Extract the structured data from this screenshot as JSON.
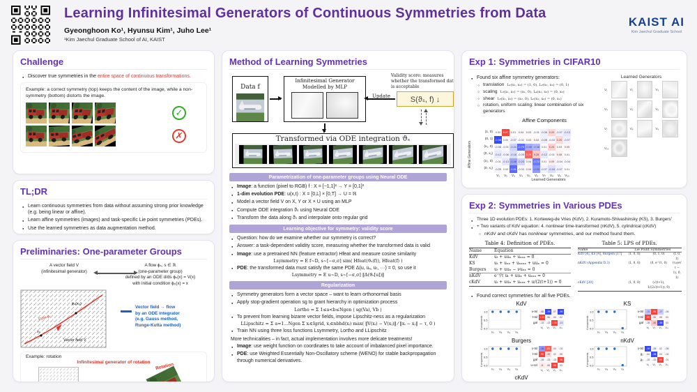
{
  "header": {
    "title": "Learning Infinitesimal Generators of Continuous Symmetries from Data",
    "authors": "Gyeonghoon Ko¹,   Hyunsu Kim¹,   Juho Lee¹",
    "affiliation": "¹Kim Jaechul Graduate School of AI, KAIST",
    "logo": {
      "main": "KAIST AI",
      "sub": "Kim Jaechul Graduate School"
    }
  },
  "challenge": {
    "heading": "Challenge",
    "bullet_prefix": "Discover true symmetries in the ",
    "bullet_highlight": "entire space of continuous transformations.",
    "example_text": "Example: a correct symmetry (top) keeps the content of the image, while a non-symmetry (bottom) distorts the image.",
    "check_icon": "✓",
    "cross_icon": "✗"
  },
  "tldr": {
    "heading": "TL;DR",
    "bullets": [
      "Learn continuous symmetries from data without assuming strong prior knowledge (e.g. being linear or affine).",
      "Learn affine symmetries (images) and task-specific Lie point symmetries (PDEs).",
      "Use the learned symmetries as data augmentation method."
    ]
  },
  "prelim": {
    "heading": "Preliminaries: One-parameter Groups",
    "left_caption_1": "A vector field V",
    "left_caption_2": "(infinitesimal generator)",
    "right_caption_1": "A flow ϕₛ, s ∈ ℝ",
    "right_caption_2": "(one-parameter group)",
    "right_caption_3": "defined by an ODE  d/ds ϕₛ(x) = V(x)",
    "right_caption_4": "with initial condition ϕ₀(x) = x",
    "flow_label": "Flow ϕₛ",
    "x0_label": "x₀",
    "phix0_label": "ϕₛ(x₀)",
    "field_label": "Vector field V",
    "ode_note_lines": [
      "Vector field → flow",
      "by an ODE integrator",
      "(e.g. Gauss method,",
      "Runge-Kutta method)"
    ],
    "example_label": "Example: rotation",
    "gen_label": "Infinitesimal generator of rotation",
    "rotation_label": "Rotation"
  },
  "method": {
    "heading": "Method of Learning Symmetries",
    "diagram": {
      "data_label": "Data f",
      "generator_label1": "Infinitesimal Generator",
      "generator_label2": "Modelled by MLP",
      "update_label": "Update",
      "validity_note": "Validity score: measures whether the transformed data is acceptable",
      "score_label": "S(ϑₛ, f) ↓",
      "transformed_label": "Transformed via ODE integration  ϑₛ"
    },
    "banner1": "Parametrization of one-parameter groups using Neural ODE",
    "param_bullets": [
      {
        "lead": "Image",
        "rest": ": a function (pixel to RGB)   f : X = [−1,1]² → Y = [0,1]³"
      },
      {
        "lead": "1-dim evolution PDE",
        "rest": ":  u(x,t) : X = [0,L] × [0,T] → U = ℝ"
      },
      {
        "lead": "",
        "rest": "Model a vector field V on X, Y or X × U using an MLP"
      },
      {
        "lead": "",
        "rest": "Compute ODE integration ϑₛ using Neural ODE"
      },
      {
        "lead": "",
        "rest": "Transform the data along ϑₛ and interpolate onto regular grid"
      }
    ],
    "banner2": "Learning objective for symmetry: validity score",
    "obj_bullets": [
      {
        "lead": "",
        "rest": "Question: how do we examine whether our symmetry is correct?"
      },
      {
        "lead": "",
        "rest": "Answer: a task-dependent validity score, measuring whether the transformed data is valid"
      },
      {
        "lead": "Image",
        "rest": ": use a pretrained NN (feature extractor) Hfeat and measure cosine similarity"
      }
    ],
    "eq_sym_img": "Lsymmetry =  E f∼D, s∼[−σ,σ]  sim( Hfeat(ϑₛ(f)), Hfeat(f) )",
    "pde_bullet": {
      "lead": "PDE",
      "rest": ": the transformed data must satisfy the same PDE  Δ(u, uₓ, uₜ, ···) = 0, so use it"
    },
    "eq_sym_pde": "Lsymmetry =  E u∼D, s∼[−σ,σ]  ‖Δ(ϑₛ[u])‖",
    "banner3": "Regularization",
    "reg_bullets": [
      "Symmetry generators form a vector space – want to learn orthonormal basis",
      "Apply stop-gradient operation sg to grant hierarchy in optimization process"
    ],
    "eq_ortho": "Lortho =  Σ 1≤a<b≤Ngen  ⟨ sg(Va), Vb ⟩",
    "reg_bullet2": "To prevent from learning bizarre vector fields, impose Lipschitz-ness as a regularization",
    "eq_lip": "LLipschitz =  Σ a=1…Ngen  Σ xᵢ∈Igrid, xⱼ∈nbhd(xᵢ)  max( ‖V(xᵢ) − V(xⱼ)‖ ⁄ ‖xᵢ − xⱼ‖ − τ, 0 )",
    "train_bullet": "Train NN using three loss functions  Lsymmetry, Lortho  and  LLipschitz",
    "more_title": "More technicalities – in fact, actual implementation involves more delicate treatments!",
    "more_bullets": [
      {
        "lead": "Image",
        "rest": ": use weight function on coordinates to take account of imbalanced pixel importance."
      },
      {
        "lead": "PDE",
        "rest": ": use Weighted Essentially Non-Oscillatory scheme (WENO) for stable backpropagation through numerical derivatives."
      }
    ]
  },
  "exp1": {
    "heading": "Exp 1: Symmetries in CIFAR10",
    "bullet": "Found six affine symmetry generators:",
    "items": [
      {
        "label": "translation",
        "eq": "L₁(x₁, x₂) = (1, 0),  L₂(x₁, x₂) = (0, 1)"
      },
      {
        "label": "scaling",
        "eq": "L₃(x₁, x₂) = (x₁, 0),  L₄(x₁, x₂) = (0, x₂)"
      },
      {
        "label": "shear",
        "eq": "L₅(x₁, x₂) = (x₂, 0),  L₆(x₁, x₂) = (0, x₁)"
      },
      {
        "label": "rotation, uniform scaling: linear combination of six generators",
        "eq": ""
      }
    ],
    "heatmap": {
      "title": "Affine Components",
      "ylabel": "Affine Generators",
      "xlabel": "Learned Generators",
      "rows": [
        "(1, 0)",
        "(0, 1)",
        "(x₁, 0)",
        "(0, x₂)",
        "(x₂, 0)",
        "(0, x₁)"
      ],
      "cols": [
        "V₁",
        "V₂",
        "V₃",
        "V₄",
        "V₅",
        "V₆",
        "V₇",
        "V₈",
        "V₉",
        "V₁₀"
      ],
      "matrix": [
        [
          0.0,
          0.97,
          0.01,
          0.04,
          0.03,
          -0.01,
          -0.08,
          0.2,
          -0.07,
          -0.13
        ],
        [
          -0.98,
          0.0,
          -0.07,
          -0.02,
          0.03,
          0.04,
          -0.08,
          -0.03,
          0.2,
          -0.07
        ],
        [
          -0.06,
          -0.01,
          -0.24,
          -0.79,
          -0.45,
          -0.38,
          0.01,
          0.23,
          0.03,
          0.05
        ],
        [
          -0.12,
          -0.06,
          -0.18,
          -0.05,
          0.79,
          0.28,
          -0.12,
          -0.01,
          0.08,
          0.01
        ],
        [
          -0.01,
          -0.13,
          -0.48,
          -0.23,
          0.04,
          -0.72,
          0.01,
          0.09,
          -0.04,
          -0.04
        ],
        [
          -0.05,
          0.0,
          -0.81,
          -0.03,
          0.04,
          -0.54,
          -0.07,
          -0.18,
          -0.07,
          0.01
        ]
      ]
    },
    "generators": {
      "title": "Learned Generators",
      "labels": [
        "V₁",
        "V₂",
        "V₃",
        "V₄",
        "V₅",
        "V₆",
        "V₇",
        "V₈",
        "V₉",
        "V₁₀"
      ]
    }
  },
  "exp2": {
    "heading": "Exp 2: Symmetries in Various PDEs",
    "bullets": [
      "Three 1D evolution PDEs: 1. Korteweg-de Vries (KdV), 2. Kuramoto-Shivashinsky (KS), 3. Burgers'",
      "+ Two variants of KdV equation: 4. nonlinear time-transformed (nKdV), 5. cylindrical (cKdV)"
    ],
    "sub_pre": "nKdV and cKdV has ",
    "sub_it": "nonlinear",
    "sub_post": " symmetries, and our method found them.",
    "table4": {
      "title": "Table 4: Definition of PDEs.",
      "headers": [
        "Name",
        "Equation"
      ],
      "rows": [
        [
          "KdV",
          "uₜ + uuₓ + uₓₓₓ = 0"
        ],
        [
          "KS",
          "uₜ + uₓₓ + uₓₓₓₓ + uuₓ = 0"
        ],
        [
          "Burgers",
          "uₜ + uuₓ − νuₓₓ = 0"
        ],
        [
          "nKdV",
          "e⁻ᵗ/τ uₜ + uuₓ + uₓₓₓ = 0"
        ],
        [
          "cKdV",
          "uₜ + uuₓ + uₓₓₓ + u/(2(t+1)) = 0"
        ]
      ]
    },
    "table5": {
      "title": "Table 5: LPS of PDEs.",
      "headers": [
        "Name",
        "Lie Point Symmetries"
      ],
      "rows": [
        {
          "name": "KdV [4], KS [4], Burgers [17]",
          "cells": [
            "(1, 0, 0)",
            "(0, 1, 0)",
            "(t, 0, 1)"
          ]
        },
        {
          "name": "nKdV (Appendix D.3)",
          "cells": [
            "(1, 0, 0)",
            "(0, e⁻ᵗ/τ, 0)",
            "(τ₀(eᵗ/τ − 1), 0, 1)"
          ]
        },
        {
          "name": "cKdV [20]",
          "cells": [
            "(1, 0, 0)",
            "(√(t+1), 1/(2√(t+1)), 0)",
            ""
          ]
        }
      ]
    },
    "found_bullet": "Found correct symmetries for all five PDEs.",
    "scatter_ylabel": "Components",
    "scatter_yticks": [
      "1.0",
      "0.5",
      "0.0"
    ],
    "subfig_xticks": [
      "V₁",
      "V₂",
      "V₃",
      "V₄"
    ],
    "subfigs": [
      {
        "name": "KdV",
        "scatter": [
          1.0,
          1.0,
          1.0,
          1.0
        ],
        "rows": [
          "x-tsl",
          "t-tsl",
          "gal"
        ],
        "matrix": [
          [
            0.08,
            -0.99,
            0.07,
            -0.99
          ],
          [
            1.0,
            0.06,
            0.04,
            0.02
          ],
          [
            -0.03,
            -0.03,
            1.0,
            -0.13
          ]
        ]
      },
      {
        "name": "KS",
        "scatter": [
          1.0,
          1.0,
          1.0,
          0.02
        ],
        "rows": [
          "x-tsl",
          "t-tsl",
          "gal"
        ],
        "matrix": [
          [
            -0.31,
            0.98,
            -0.27,
            -0.04
          ],
          [
            0.99,
            0.08,
            0.05,
            0.03
          ],
          [
            -0.05,
            0.28,
            -0.96,
            0.03
          ]
        ]
      },
      {
        "name": "Burgers",
        "scatter": [
          1.0,
          1.0,
          1.0,
          1.0
        ],
        "rows": [
          "x-tsl",
          "t-tsl",
          "gal",
          "u-scl"
        ],
        "matrix": [
          [
            -0.56,
            0.83,
            0.04,
            -0.02
          ],
          [
            0.98,
            0.19,
            0.02,
            0.05
          ],
          [
            -0.05,
            -0.03,
            -0.02,
            0.98
          ],
          [
            0.11,
            0.08,
            0.98,
            0.03
          ]
        ]
      },
      {
        "name": "nKdV",
        "scatter": [
          1.0,
          1.0,
          1.0,
          0.02
        ],
        "rows": [
          "x-tsl",
          "g₂",
          "g₃"
        ],
        "matrix": [
          [
            -0.99,
            -0.05,
            0.02,
            -0.05
          ],
          [
            0.04,
            -0.98,
            0.03,
            -0.02
          ],
          [
            -0.02,
            -0.03,
            0.99,
            -0.01
          ]
        ]
      },
      {
        "name": "cKdV",
        "scatter": [
          1.0,
          1.0,
          1.0,
          0.02
        ],
        "rows": [
          "x-tsl",
          "g₂",
          "t-tsl"
        ],
        "matrix": [
          [
            -0.97,
            0.08,
            -0.07,
            0.04
          ],
          [
            0.05,
            -0.28,
            0.89,
            0.04
          ],
          [
            0.08,
            0.93,
            -0.21,
            0.08
          ]
        ]
      }
    ]
  }
}
